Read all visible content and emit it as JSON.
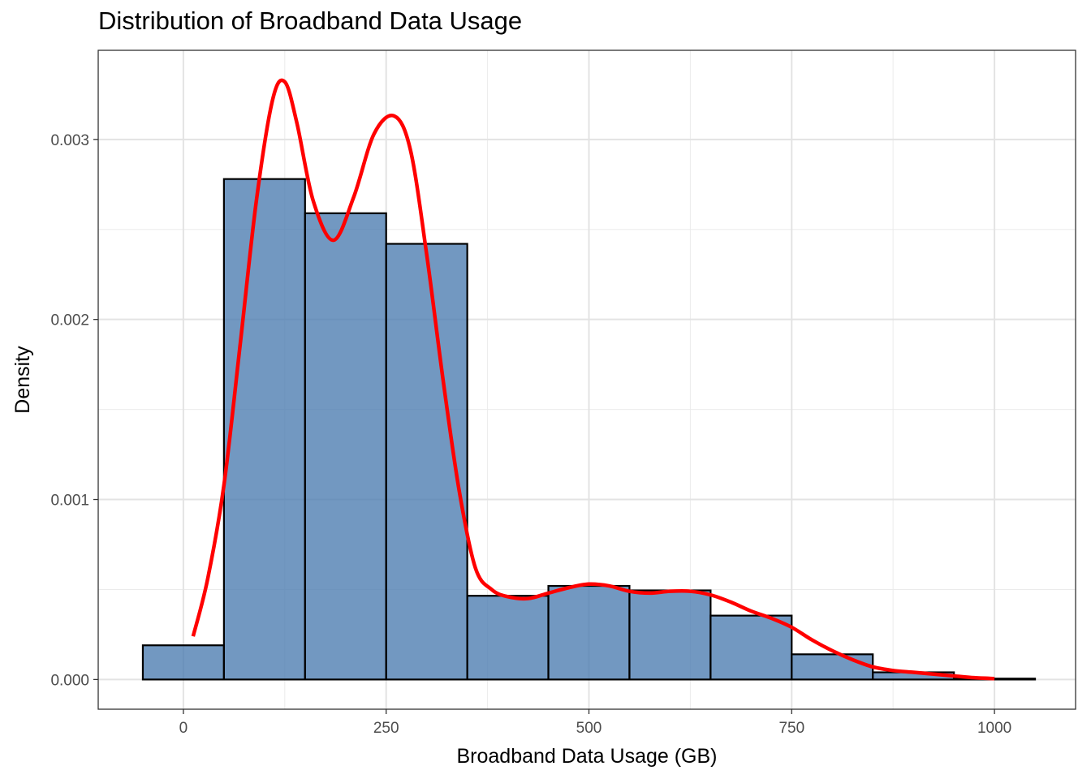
{
  "chart_data": {
    "type": "histogram",
    "title": "Distribution of Broadband Data Usage",
    "xlabel": "Broadband Data Usage (GB)",
    "ylabel": "Density",
    "xlim": [
      -105,
      1100
    ],
    "ylim": [
      -0.000165,
      0.003495
    ],
    "x_ticks": [
      0,
      250,
      500,
      750,
      1000
    ],
    "x_tick_labels": [
      "0",
      "250",
      "500",
      "750",
      "1000"
    ],
    "y_ticks": [
      0,
      0.001,
      0.002,
      0.003
    ],
    "y_tick_labels": [
      "0.000",
      "0.001",
      "0.002",
      "0.003"
    ],
    "grid": true,
    "bins": [
      {
        "start": -50,
        "end": 50,
        "density": 0.00019
      },
      {
        "start": 50,
        "end": 150,
        "density": 0.00278
      },
      {
        "start": 150,
        "end": 250,
        "density": 0.00259
      },
      {
        "start": 250,
        "end": 350,
        "density": 0.00242
      },
      {
        "start": 350,
        "end": 450,
        "density": 0.000465
      },
      {
        "start": 450,
        "end": 550,
        "density": 0.00052
      },
      {
        "start": 550,
        "end": 650,
        "density": 0.000495
      },
      {
        "start": 650,
        "end": 750,
        "density": 0.000355
      },
      {
        "start": 750,
        "end": 850,
        "density": 0.00014
      },
      {
        "start": 850,
        "end": 950,
        "density": 4e-05
      },
      {
        "start": 950,
        "end": 1050,
        "density": 5e-06
      }
    ],
    "density_curve": {
      "x": [
        12,
        30,
        50,
        70,
        90,
        110,
        125,
        140,
        160,
        185,
        210,
        235,
        260,
        280,
        300,
        320,
        340,
        360,
        380,
        400,
        425,
        450,
        475,
        500,
        525,
        550,
        575,
        600,
        625,
        650,
        675,
        700,
        725,
        750,
        775,
        800,
        825,
        850,
        875,
        900,
        925,
        950,
        975,
        1000
      ],
      "y": [
        0.00024,
        0.00056,
        0.00108,
        0.00186,
        0.00266,
        0.00322,
        0.00332,
        0.00309,
        0.00266,
        0.00244,
        0.00268,
        0.00303,
        0.00313,
        0.00294,
        0.00236,
        0.00167,
        0.00105,
        0.00062,
        0.0005,
        0.00046,
        0.00045,
        0.00048,
        0.00051,
        0.00053,
        0.00052,
        0.00049,
        0.00048,
        0.00049,
        0.00049,
        0.00047,
        0.00043,
        0.00038,
        0.00034,
        0.00029,
        0.00022,
        0.00016,
        0.00011,
        7e-05,
        5e-05,
        4e-05,
        3e-05,
        2e-05,
        1e-05,
        5e-06
      ],
      "color": "#ff0000"
    },
    "bar_fill": "#4a7bb0",
    "bar_stroke": "#000000"
  }
}
